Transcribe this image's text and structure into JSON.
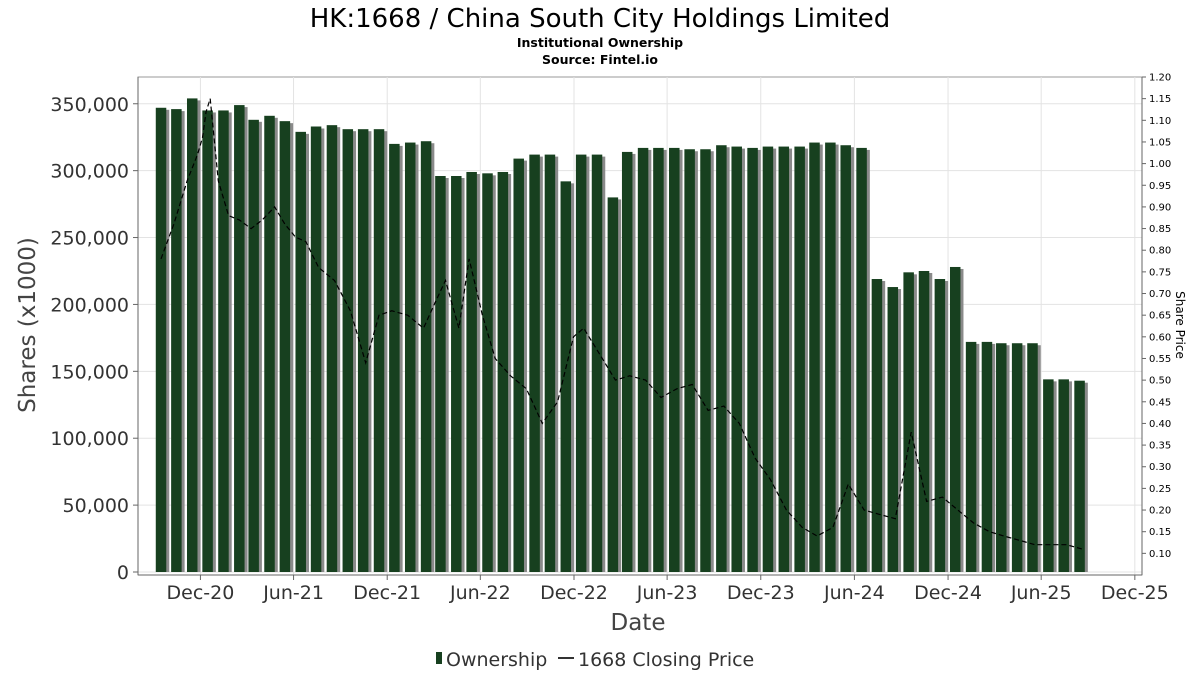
{
  "chart_data": {
    "type": "bar",
    "title": "HK:1668 / China South City Holdings Limited",
    "subtitle_1": "Institutional Ownership",
    "subtitle_2": "Source: Fintel.io",
    "xlabel": "Date",
    "ylabel": "Shares (x1000)",
    "y2label": "Share Price",
    "ylim": [
      0,
      370000
    ],
    "y2lim": [
      0.05,
      1.2
    ],
    "yticks": [
      0,
      50000,
      100000,
      150000,
      200000,
      250000,
      300000,
      350000
    ],
    "ytick_labels": [
      "0",
      "50,000",
      "100,000",
      "150,000",
      "200,000",
      "250,000",
      "300,000",
      "350,000"
    ],
    "y2ticks": [
      0.1,
      0.15,
      0.2,
      0.25,
      0.3,
      0.35,
      0.4,
      0.45,
      0.5,
      0.55,
      0.6,
      0.65,
      0.7,
      0.75,
      0.8,
      0.85,
      0.9,
      0.95,
      1.0,
      1.05,
      1.1,
      1.15,
      1.2
    ],
    "y2tick_labels": [
      "0.10",
      "0.15",
      "0.20",
      "0.25",
      "0.30",
      "0.35",
      "0.40",
      "0.45",
      "0.50",
      "0.55",
      "0.60",
      "0.65",
      "0.70",
      "0.75",
      "0.80",
      "0.85",
      "0.90",
      "0.95",
      "1.00",
      "1.05",
      "1.10",
      "1.15",
      "1.20"
    ],
    "xlim": [
      "2020-08-01",
      "2025-12-15"
    ],
    "xticks": [
      "2020-12-01",
      "2021-06-01",
      "2021-12-01",
      "2022-06-01",
      "2022-12-01",
      "2023-06-01",
      "2023-12-01",
      "2024-06-01",
      "2024-12-01",
      "2025-06-01",
      "2025-12-01"
    ],
    "xtick_labels": [
      "Dec-20",
      "Jun-21",
      "Dec-21",
      "Jun-22",
      "Dec-22",
      "Jun-23",
      "Dec-23",
      "Jun-24",
      "Dec-24",
      "Jun-25",
      "Dec-25"
    ],
    "grid": true,
    "legend_position": "bottom-center",
    "colors": {
      "bar": "#17401f",
      "bar_shadow": "#8a8a8a",
      "price_line": "#000000",
      "grid": "#e3e3e3"
    },
    "series": [
      {
        "name": "Ownership",
        "kind": "bar",
        "x": [
          "2020-09-15",
          "2020-10-15",
          "2020-11-15",
          "2020-12-15",
          "2021-01-15",
          "2021-02-15",
          "2021-03-15",
          "2021-04-15",
          "2021-05-15",
          "2021-06-15",
          "2021-07-15",
          "2021-08-15",
          "2021-09-15",
          "2021-10-15",
          "2021-11-15",
          "2021-12-15",
          "2022-01-15",
          "2022-02-15",
          "2022-03-15",
          "2022-04-15",
          "2022-05-15",
          "2022-06-15",
          "2022-07-15",
          "2022-08-15",
          "2022-09-15",
          "2022-10-15",
          "2022-11-15",
          "2022-12-15",
          "2023-01-15",
          "2023-02-15",
          "2023-03-15",
          "2023-04-15",
          "2023-05-15",
          "2023-06-15",
          "2023-07-15",
          "2023-08-15",
          "2023-09-15",
          "2023-10-15",
          "2023-11-15",
          "2023-12-15",
          "2024-01-15",
          "2024-02-15",
          "2024-03-15",
          "2024-04-15",
          "2024-05-15",
          "2024-06-15",
          "2024-07-15",
          "2024-08-15",
          "2024-09-15",
          "2024-10-15",
          "2024-11-15",
          "2024-12-15",
          "2025-01-15",
          "2025-02-15",
          "2025-03-15",
          "2025-04-15",
          "2025-05-15",
          "2025-06-15",
          "2025-07-15",
          "2025-08-15"
        ],
        "values": [
          347000,
          346000,
          354000,
          345000,
          345000,
          349000,
          338000,
          341000,
          337000,
          329000,
          333000,
          334000,
          331000,
          331000,
          331000,
          320000,
          321000,
          322000,
          296000,
          296000,
          299000,
          298000,
          299000,
          309000,
          312000,
          312000,
          292000,
          312000,
          312000,
          280000,
          314000,
          317000,
          317000,
          317000,
          316000,
          316000,
          319000,
          318000,
          317000,
          318000,
          318000,
          318000,
          321000,
          321000,
          319000,
          317000,
          219000,
          213000,
          224000,
          225000,
          219000,
          228000,
          172000,
          172000,
          171000,
          171000,
          171000,
          144000,
          144000,
          143000
        ]
      },
      {
        "name": "1668 Closing Price",
        "kind": "line",
        "x": [
          "2020-09-15",
          "2020-10-10",
          "2020-11-05",
          "2020-11-25",
          "2020-12-05",
          "2020-12-12",
          "2020-12-20",
          "2021-01-05",
          "2021-01-25",
          "2021-02-15",
          "2021-03-10",
          "2021-04-01",
          "2021-04-25",
          "2021-05-15",
          "2021-06-05",
          "2021-06-25",
          "2021-07-20",
          "2021-08-20",
          "2021-09-20",
          "2021-10-20",
          "2021-11-15",
          "2021-12-10",
          "2022-01-10",
          "2022-02-10",
          "2022-03-05",
          "2022-03-25",
          "2022-04-20",
          "2022-05-10",
          "2022-06-05",
          "2022-06-30",
          "2022-07-30",
          "2022-08-30",
          "2022-09-30",
          "2022-10-30",
          "2022-11-30",
          "2022-12-20",
          "2023-01-20",
          "2023-02-20",
          "2023-03-20",
          "2023-04-20",
          "2023-05-20",
          "2023-06-20",
          "2023-07-20",
          "2023-08-20",
          "2023-09-20",
          "2023-10-20",
          "2023-11-20",
          "2023-12-20",
          "2024-01-20",
          "2024-02-20",
          "2024-03-20",
          "2024-04-20",
          "2024-05-20",
          "2024-06-20",
          "2024-07-20",
          "2024-08-20",
          "2024-09-20",
          "2024-10-20",
          "2024-11-20",
          "2024-12-20",
          "2025-01-20",
          "2025-02-20",
          "2025-03-20",
          "2025-04-20",
          "2025-05-20",
          "2025-06-20",
          "2025-07-20",
          "2025-08-20"
        ],
        "values": [
          0.78,
          0.86,
          0.96,
          1.02,
          1.06,
          1.12,
          1.15,
          0.96,
          0.88,
          0.87,
          0.85,
          0.87,
          0.9,
          0.86,
          0.83,
          0.82,
          0.76,
          0.73,
          0.66,
          0.54,
          0.65,
          0.66,
          0.65,
          0.62,
          0.68,
          0.73,
          0.62,
          0.78,
          0.65,
          0.55,
          0.51,
          0.48,
          0.4,
          0.45,
          0.6,
          0.62,
          0.56,
          0.5,
          0.51,
          0.5,
          0.46,
          0.48,
          0.49,
          0.43,
          0.44,
          0.4,
          0.32,
          0.27,
          0.2,
          0.16,
          0.14,
          0.16,
          0.26,
          0.2,
          0.19,
          0.18,
          0.38,
          0.22,
          0.23,
          0.2,
          0.17,
          0.15,
          0.14,
          0.13,
          0.12,
          0.12,
          0.12,
          0.11
        ]
      }
    ]
  }
}
